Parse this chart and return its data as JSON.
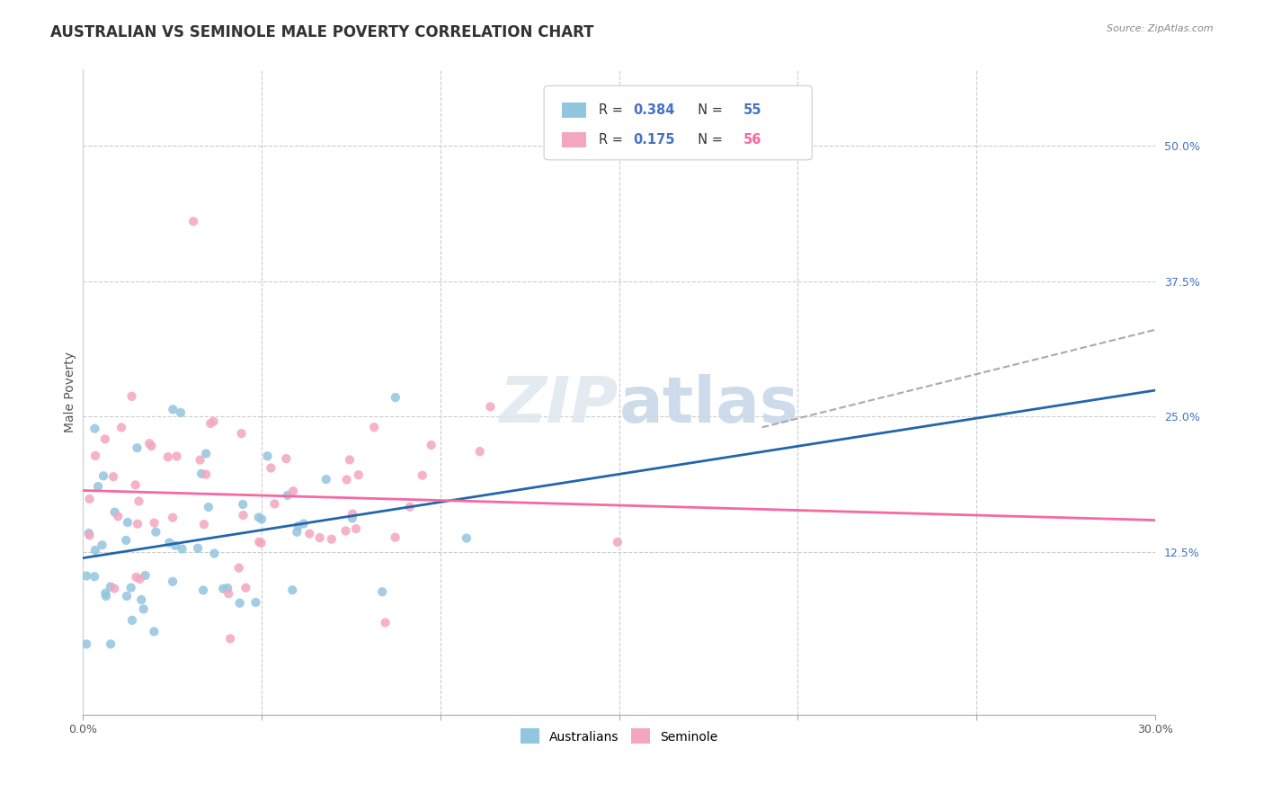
{
  "title": "AUSTRALIAN VS SEMINOLE MALE POVERTY CORRELATION CHART",
  "source": "Source: ZipAtlas.com",
  "ylabel": "Male Poverty",
  "xlim": [
    0.0,
    0.3
  ],
  "ylim": [
    -0.025,
    0.57
  ],
  "x_ticks": [
    0.0,
    0.05,
    0.1,
    0.15,
    0.2,
    0.25,
    0.3
  ],
  "x_tick_labels": [
    "0.0%",
    "",
    "",
    "",
    "",
    "",
    "30.0%"
  ],
  "y_ticks_right": [
    0.125,
    0.25,
    0.375,
    0.5
  ],
  "y_tick_labels_right": [
    "12.5%",
    "25.0%",
    "37.5%",
    "50.0%"
  ],
  "R_australian": 0.384,
  "N_australian": 55,
  "R_seminole": 0.175,
  "N_seminole": 56,
  "color_australian": "#92c5de",
  "color_seminole": "#f4a6c0",
  "trend_color_australian": "#2166ac",
  "trend_color_seminole": "#f768a1",
  "trend_color_dashed": "#aaaaaa",
  "background_color": "#ffffff",
  "grid_color": "#cccccc",
  "title_fontsize": 12,
  "label_fontsize": 10,
  "tick_fontsize": 9,
  "legend_R_color": "#4472c4",
  "legend_N_color_aus": "#4472c4",
  "legend_N_color_sem": "#f768a1",
  "watermark_color": "#e0e8f0",
  "aus_label": "Australians",
  "sem_label": "Seminole"
}
